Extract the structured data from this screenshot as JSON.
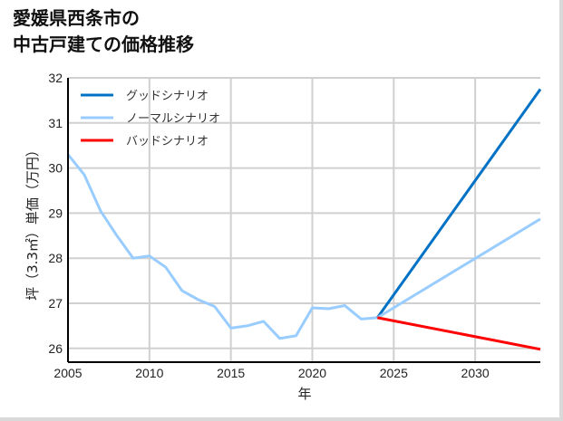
{
  "title_line1": "愛媛県西条市の",
  "title_line2": "中古戸建ての価格推移",
  "chart_data": {
    "type": "line",
    "title": "愛媛県西条市の中古戸建ての価格推移",
    "xlabel": "年",
    "ylabel": "坪（3.3㎡）単価（万円）",
    "xlim": [
      2005,
      2034
    ],
    "ylim": [
      25.7,
      32
    ],
    "x_ticks": [
      2005,
      2010,
      2015,
      2020,
      2025,
      2030
    ],
    "y_ticks": [
      26,
      27,
      28,
      29,
      30,
      31,
      32
    ],
    "grid": true,
    "legend_position": "upper left",
    "legend": [
      "グッドシナリオ",
      "ノーマルシナリオ",
      "バッドシナリオ"
    ],
    "series": [
      {
        "name": "ノーマルシナリオ (実績)",
        "color": "#99ccff",
        "x": [
          2005,
          2006,
          2007,
          2008,
          2009,
          2010,
          2011,
          2012,
          2013,
          2014,
          2015,
          2016,
          2017,
          2018,
          2019,
          2020,
          2021,
          2022,
          2023,
          2024
        ],
        "values": [
          30.3,
          29.85,
          29.05,
          28.5,
          28.0,
          28.05,
          27.8,
          27.28,
          27.08,
          26.93,
          26.45,
          26.5,
          26.6,
          26.22,
          26.28,
          26.9,
          26.88,
          26.95,
          26.65,
          26.68
        ]
      },
      {
        "name": "グッドシナリオ",
        "color": "#0072c6",
        "x": [
          2024,
          2034
        ],
        "values": [
          26.68,
          31.75
        ]
      },
      {
        "name": "ノーマルシナリオ",
        "color": "#99ccff",
        "x": [
          2024,
          2034
        ],
        "values": [
          26.68,
          28.87
        ]
      },
      {
        "name": "バッドシナリオ",
        "color": "#ff0000",
        "x": [
          2024,
          2034
        ],
        "values": [
          26.68,
          25.98
        ]
      }
    ]
  }
}
